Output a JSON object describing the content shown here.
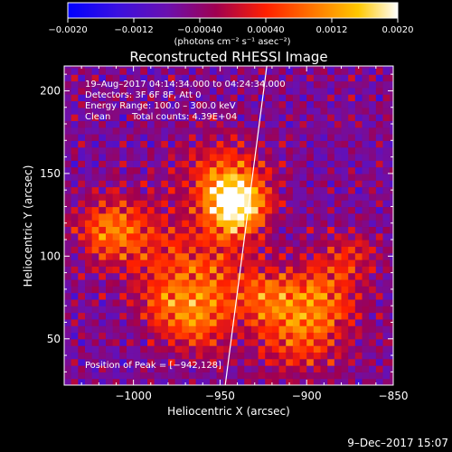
{
  "chart_data": {
    "type": "heatmap",
    "title": "Reconstructed RHESSI Image",
    "xlabel": "Heliocentric X (arcsec)",
    "ylabel": "Heliocentric Y (arcsec)",
    "xlim": [
      -1040,
      -850
    ],
    "ylim": [
      22,
      215
    ],
    "xticks": [
      -1000,
      -950,
      -900,
      -850
    ],
    "xtick_labels": [
      "−1000",
      "−950",
      "−900",
      "−850"
    ],
    "yticks": [
      50,
      100,
      150,
      200
    ],
    "ytick_labels": [
      "50",
      "100",
      "150",
      "200"
    ],
    "colorbar": {
      "range": [
        -0.002,
        0.002
      ],
      "ticks": [
        -0.002,
        -0.0012,
        -0.0004,
        0.0004,
        0.0012,
        0.002
      ],
      "tick_labels": [
        "−0.0020",
        "−0.0012",
        "−0.00040",
        "0.00040",
        "0.0012",
        "0.0020"
      ],
      "unit_label": "(photons cm⁻² s⁻¹ asec⁻²)",
      "colors": [
        "#0000ff",
        "#5a00c0",
        "#7a2aa0",
        "#b00040",
        "#ff2a00",
        "#ff8000",
        "#ffd000",
        "#ffffff"
      ]
    },
    "annotations": {
      "line1": "19–Aug–2017 04:14:34.000 to 04:24:34.000",
      "line2": "Detectors: 3F 6F 8F, Att 0",
      "line3": "Energy Range: 100.0 – 300.0 keV",
      "line4_a": "Clean",
      "line4_b": "Total counts: 4.39E+04",
      "peak": "Position of Peak = [−942,128]"
    },
    "peak": [
      -942,
      128
    ],
    "limb_line": [
      [
        -947,
        22
      ],
      [
        -923,
        215
      ]
    ],
    "hot_regions": [
      {
        "x": -942,
        "y": 128,
        "sigma": 12,
        "level": 0.0024
      },
      {
        "x": -950,
        "y": 145,
        "sigma": 16,
        "level": 0.0013
      },
      {
        "x": -963,
        "y": 88,
        "sigma": 20,
        "level": 0.0012
      },
      {
        "x": -965,
        "y": 58,
        "sigma": 14,
        "level": 0.0011
      },
      {
        "x": -1005,
        "y": 112,
        "sigma": 16,
        "level": 0.0011
      },
      {
        "x": -1020,
        "y": 115,
        "sigma": 11,
        "level": 0.0009
      },
      {
        "x": -905,
        "y": 55,
        "sigma": 18,
        "level": 0.0015
      },
      {
        "x": -890,
        "y": 80,
        "sigma": 14,
        "level": 0.0009
      },
      {
        "x": -875,
        "y": 100,
        "sigma": 10,
        "level": 0.0007
      },
      {
        "x": -925,
        "y": 75,
        "sigma": 12,
        "level": 0.0009
      },
      {
        "x": -985,
        "y": 70,
        "sigma": 12,
        "level": 0.0007
      }
    ],
    "background_level": -0.0006
  },
  "footer": {
    "date": "9–Dec–2017 15:07"
  }
}
